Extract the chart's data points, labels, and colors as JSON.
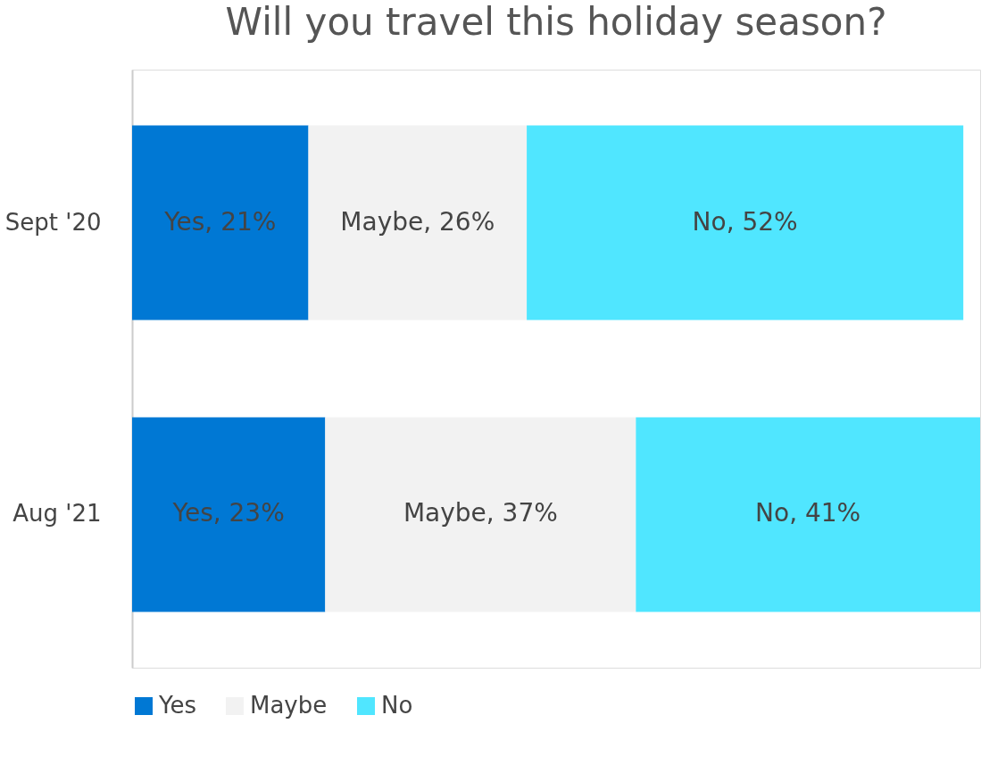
{
  "chart_data": {
    "type": "bar",
    "orientation": "horizontal",
    "stacked": true,
    "title": "Will you travel this holiday season?",
    "categories": [
      "Sept '20",
      "Aug '21"
    ],
    "series": [
      {
        "name": "Yes",
        "color": "#0078d4",
        "values": [
          21,
          23
        ],
        "value_labels": [
          "Yes, 21%",
          "Yes, 23%"
        ]
      },
      {
        "name": "Maybe",
        "color": "#f2f2f2",
        "values": [
          26,
          37
        ],
        "value_labels": [
          "Maybe, 26%",
          "Maybe, 37%"
        ]
      },
      {
        "name": "No",
        "color": "#50e6ff",
        "values": [
          52,
          41
        ],
        "value_labels": [
          "No, 52%",
          "No, 41%"
        ]
      }
    ],
    "legend": "bottom",
    "grid": false
  }
}
